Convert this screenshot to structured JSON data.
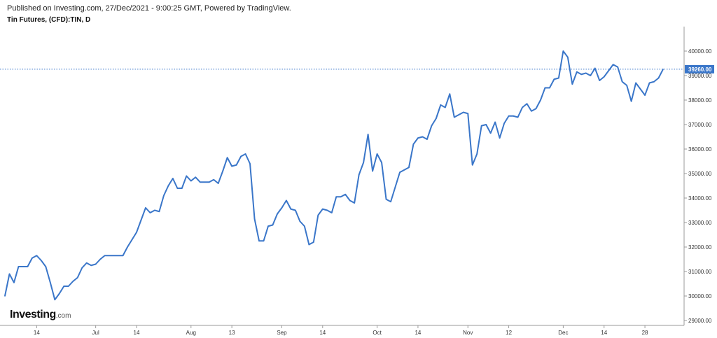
{
  "header": {
    "published": "Published on Investing.com, 27/Dec/2021 - 9:00:25 GMT, Powered by TradingView.",
    "instrument": "Tin Futures, (CFD):TIN, D"
  },
  "logo": {
    "brand": "Investing",
    "suffix": ".com"
  },
  "colors": {
    "line": "#3a76c9",
    "price_label_bg": "#3a76c9",
    "axis": "#999999"
  },
  "chart_data": {
    "type": "line",
    "title": "Tin Futures, (CFD):TIN, D",
    "xlabel": "",
    "ylabel": "",
    "ylim": [
      28800,
      41000
    ],
    "y_ticks": [
      29000,
      30000,
      31000,
      32000,
      33000,
      34000,
      35000,
      36000,
      37000,
      38000,
      39000,
      40000
    ],
    "y_tick_labels": [
      "29000.00",
      "30000.00",
      "31000.00",
      "32000.00",
      "33000.00",
      "34000.00",
      "35000.00",
      "36000.00",
      "37000.00",
      "38000.00",
      "39000.00",
      "40000.00"
    ],
    "x_ticks": [
      {
        "label": "14",
        "index": 7
      },
      {
        "label": "Jul",
        "index": 20
      },
      {
        "label": "14",
        "index": 29
      },
      {
        "label": "Aug",
        "index": 41
      },
      {
        "label": "13",
        "index": 50
      },
      {
        "label": "Sep",
        "index": 61
      },
      {
        "label": "14",
        "index": 70
      },
      {
        "label": "Oct",
        "index": 82
      },
      {
        "label": "14",
        "index": 91
      },
      {
        "label": "Nov",
        "index": 102
      },
      {
        "label": "12",
        "index": 111
      },
      {
        "label": "Dec",
        "index": 123
      },
      {
        "label": "14",
        "index": 132
      },
      {
        "label": "28",
        "index": 141
      }
    ],
    "last_price": {
      "value": 39260,
      "label": "39260.00"
    },
    "series": [
      {
        "name": "",
        "values": [
          30000,
          30900,
          30550,
          31200,
          31200,
          31200,
          31550,
          31650,
          31450,
          31200,
          30550,
          29850,
          30100,
          30400,
          30400,
          30600,
          30750,
          31150,
          31350,
          31250,
          31300,
          31500,
          31650,
          31650,
          31650,
          31650,
          31650,
          32000,
          32300,
          32600,
          33100,
          33600,
          33400,
          33500,
          33450,
          34100,
          34500,
          34800,
          34400,
          34400,
          34900,
          34700,
          34850,
          34650,
          34650,
          34650,
          34750,
          34600,
          35100,
          35650,
          35300,
          35350,
          35700,
          35800,
          35400,
          33150,
          32250,
          32250,
          32850,
          32900,
          33350,
          33600,
          33900,
          33550,
          33500,
          33050,
          32850,
          32100,
          32200,
          33300,
          33550,
          33500,
          33400,
          34050,
          34050,
          34150,
          33900,
          33800,
          34950,
          35450,
          36600,
          35100,
          35800,
          35450,
          33950,
          33850,
          34450,
          35050,
          35150,
          35250,
          36200,
          36450,
          36500,
          36400,
          36950,
          37250,
          37800,
          37700,
          38250,
          37300,
          37400,
          37500,
          37450,
          35350,
          35800,
          36950,
          37000,
          36650,
          37100,
          36450,
          37050,
          37350,
          37350,
          37300,
          37700,
          37850,
          37550,
          37650,
          38000,
          38500,
          38500,
          38850,
          38900,
          40000,
          39750,
          38650,
          39150,
          39050,
          39100,
          39000,
          39300,
          38800,
          38950,
          39200,
          39450,
          39350,
          38750,
          38600,
          37950,
          38700,
          38450,
          38200,
          38700,
          38750,
          38900,
          39260
        ]
      }
    ],
    "grid": false,
    "legend": "none"
  }
}
